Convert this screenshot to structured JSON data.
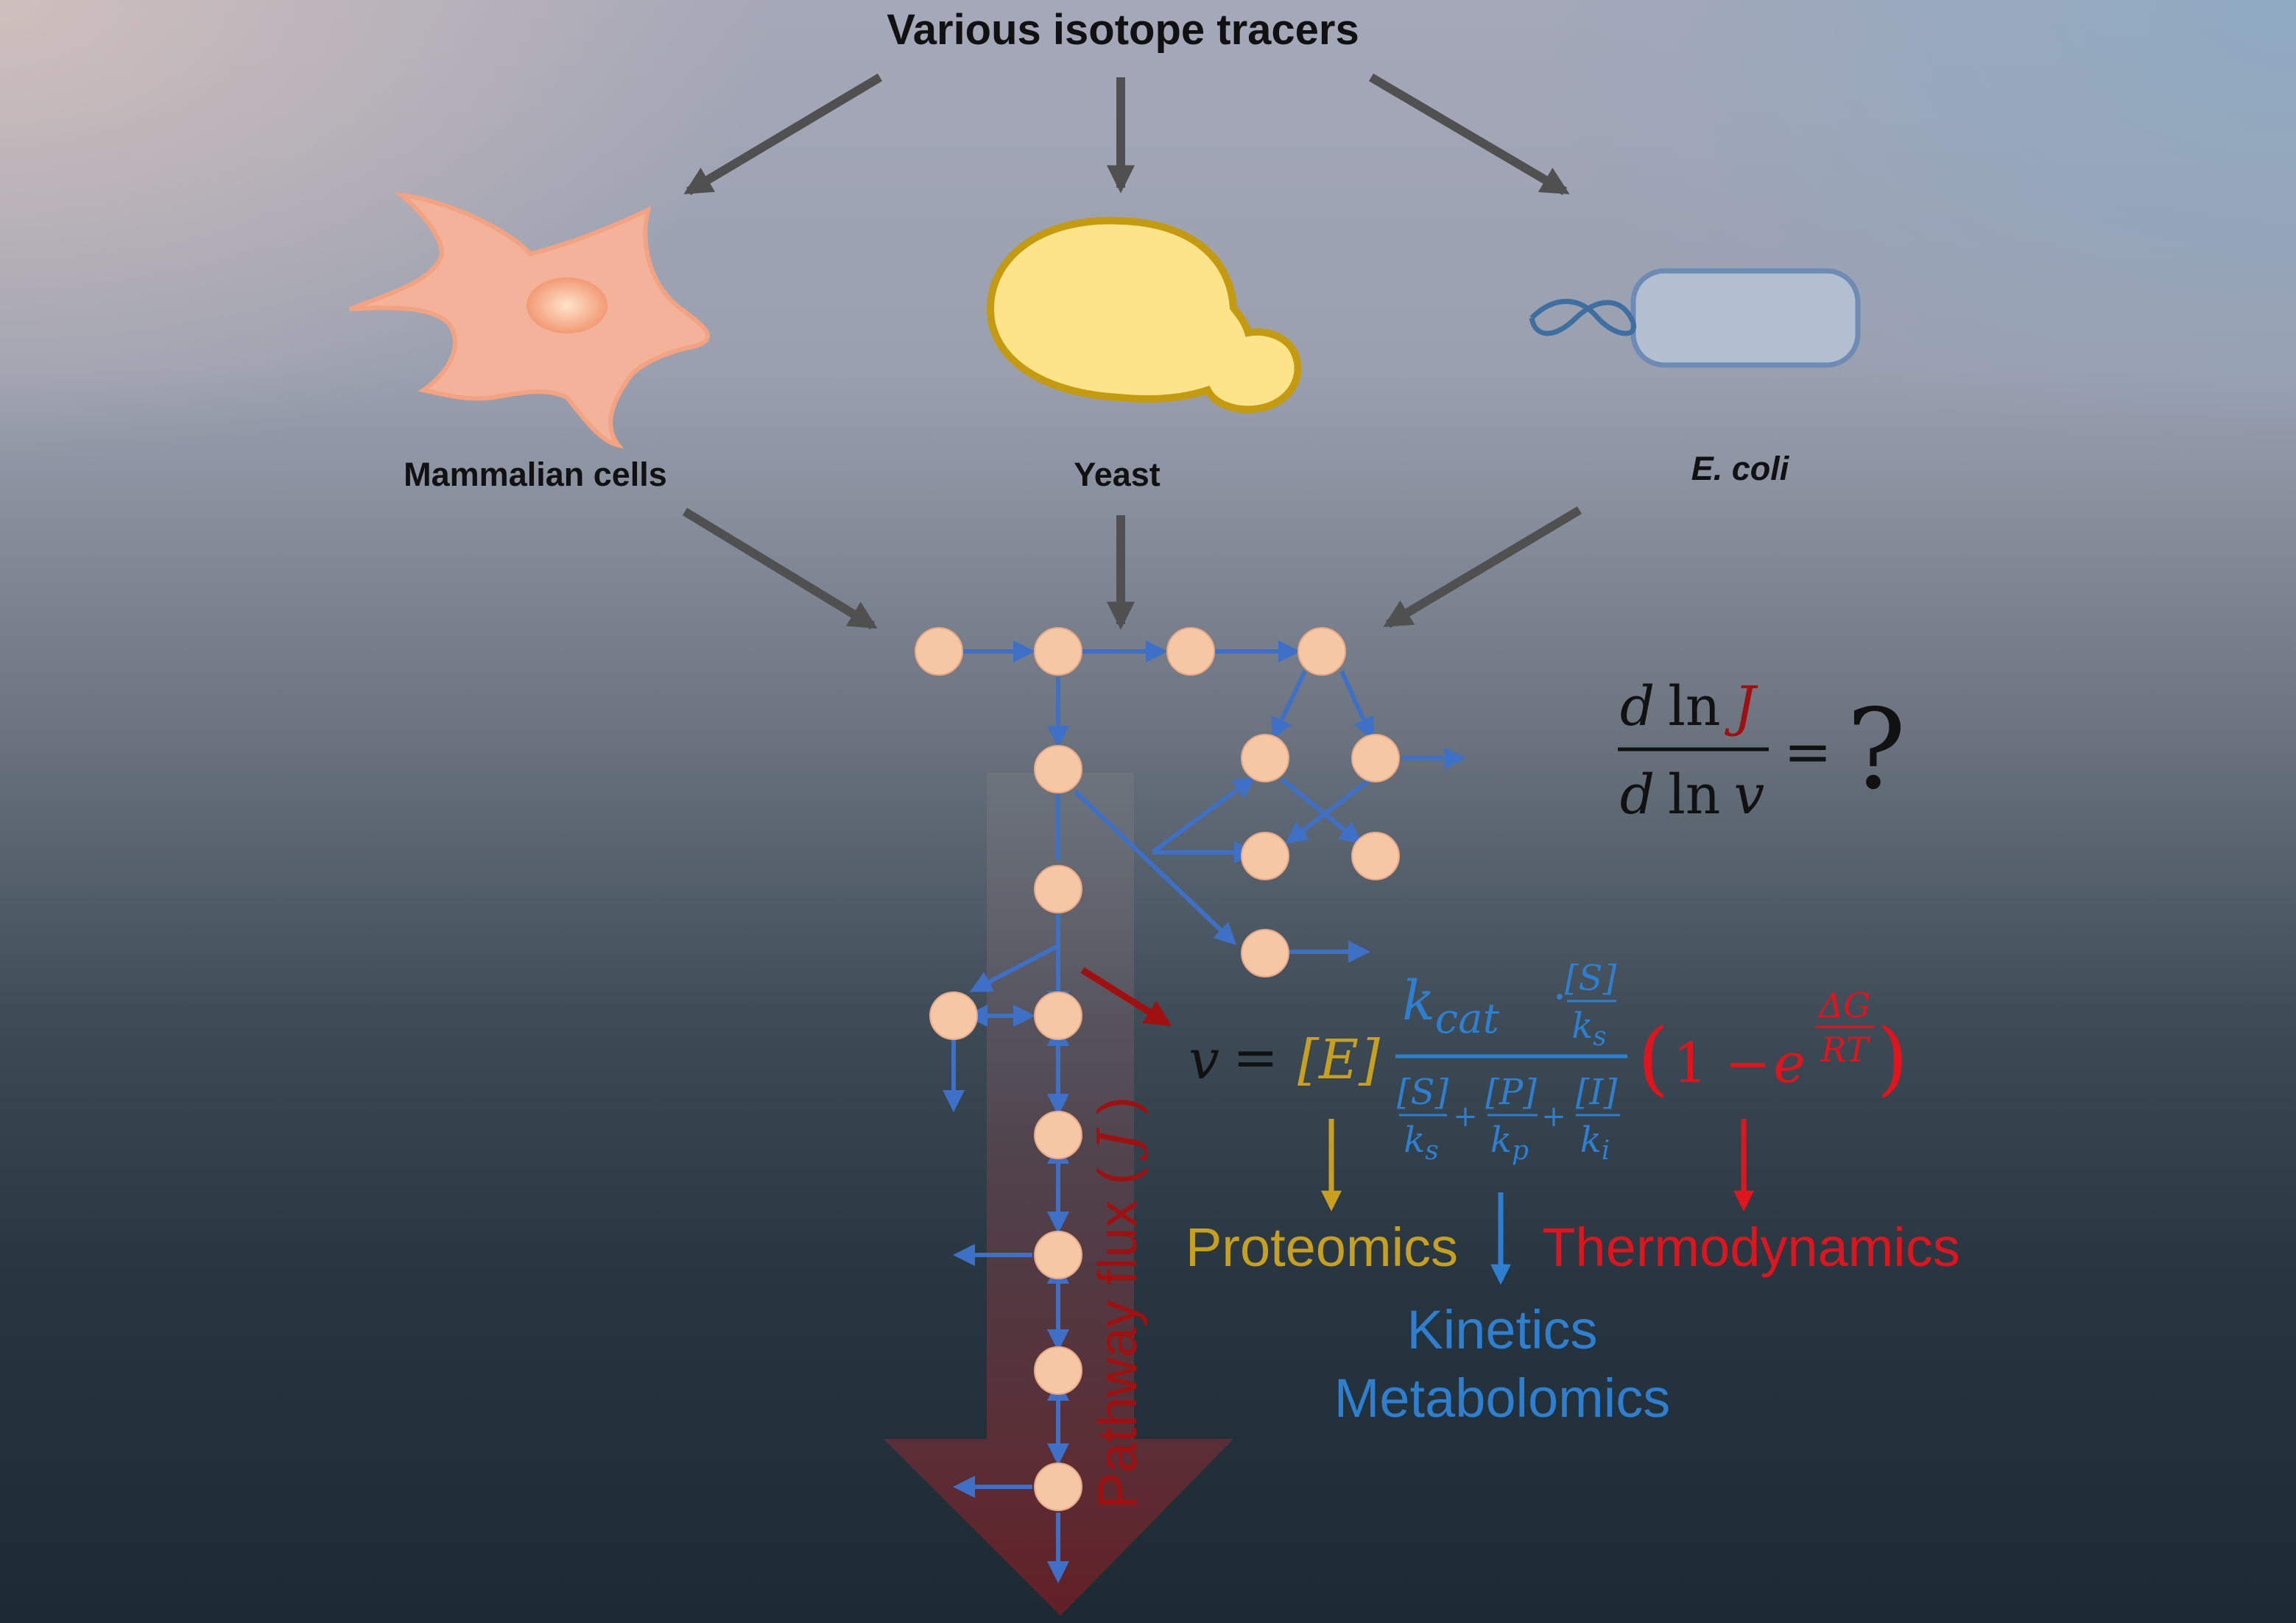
{
  "top_title": "Various isotope tracers",
  "organisms": {
    "mammalian": "Mammalian cells",
    "yeast": "Yeast",
    "ecoli": "E. coli"
  },
  "sensitivity_equation": {
    "d1": "d",
    "ln1": "ln",
    "J": "J",
    "d2": "d",
    "ln2": "ln",
    "v": "v",
    "equals": "=",
    "question": "?"
  },
  "rate_equation": {
    "v": "v",
    "equals": "=",
    "E": "[E]",
    "kcat": "k",
    "kcat_sub": "cat",
    "dot": "·",
    "S": "[S]",
    "ks": "k",
    "ks_sub": "s",
    "P": "[P]",
    "kp": "k",
    "kp_sub": "p",
    "I": "[I]",
    "ki": "k",
    "ki_sub": "i",
    "plus": "+",
    "open_paren": "(",
    "one_minus": "1 −",
    "e": "e",
    "dG": "ΔG",
    "RT": "RT",
    "close_paren": ")"
  },
  "labels": {
    "proteomics": "Proteomics",
    "thermodynamics": "Thermodynamics",
    "kinetics": "Kinetics",
    "metabolomics": "Metabolomics",
    "pathway_flux": "Pathway flux",
    "flux_symbol": "J"
  },
  "colors": {
    "node": "#f6c7a4",
    "network": "#3f70c8",
    "enzyme": "#c8a020",
    "kinetics": "#2f7fd0",
    "thermo": "#e0141c",
    "flux_label": "#a01010",
    "gray_arrow": "#505050"
  }
}
